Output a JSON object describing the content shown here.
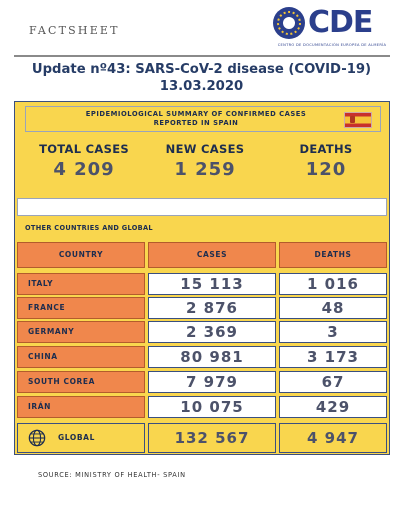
{
  "header": {
    "factsheet": "FACTSHEET",
    "logo_text": "CDE",
    "logo_subtitle": "CENTRO DE DOCUMENTACIÓN EUROPEA DE ALMERÍA",
    "title_line1": "Update nº43: SARS-CoV-2 disease (COVID-19)",
    "title_line2": "13.03.2020"
  },
  "summary": {
    "banner_line1": "EPIDEMIOLOGICAL SUMMARY OF CONFIRMED CASES",
    "banner_line2": "REPORTED IN SPAIN",
    "total_cases_label": "TOTAL CASES",
    "total_cases_value": "4 209",
    "new_cases_label": "NEW CASES",
    "new_cases_value": "1 259",
    "deaths_label": "DEATHS",
    "deaths_value": "120"
  },
  "other": {
    "heading": "OTHER COUNTRIES AND GLOBAL",
    "columns": [
      "COUNTRY",
      "CASES",
      "DEATHS"
    ],
    "rows": [
      {
        "country": "ITALY",
        "cases": "15 113",
        "deaths": "1 016"
      },
      {
        "country": "FRANCE",
        "cases": "2 876",
        "deaths": "48"
      },
      {
        "country": "GERMANY",
        "cases": "2 369",
        "deaths": "3"
      },
      {
        "country": "CHINA",
        "cases": "80 981",
        "deaths": "3 173"
      },
      {
        "country": "SOUTH COREA",
        "cases": "7 979",
        "deaths": "67"
      },
      {
        "country": "IRÁN",
        "cases": "10 075",
        "deaths": "429"
      }
    ],
    "global": {
      "label": "GLOBAL",
      "cases": "132 567",
      "deaths": "4 947"
    }
  },
  "footer": {
    "source": "SOURCE: MINISTRY OF HEALTH- SPAIN"
  },
  "colors": {
    "yellow": "#f9d64e",
    "orange": "#f0874c",
    "navy": "#1d2d4f"
  },
  "icons": [
    "globe-icon",
    "spain-flag-icon"
  ]
}
